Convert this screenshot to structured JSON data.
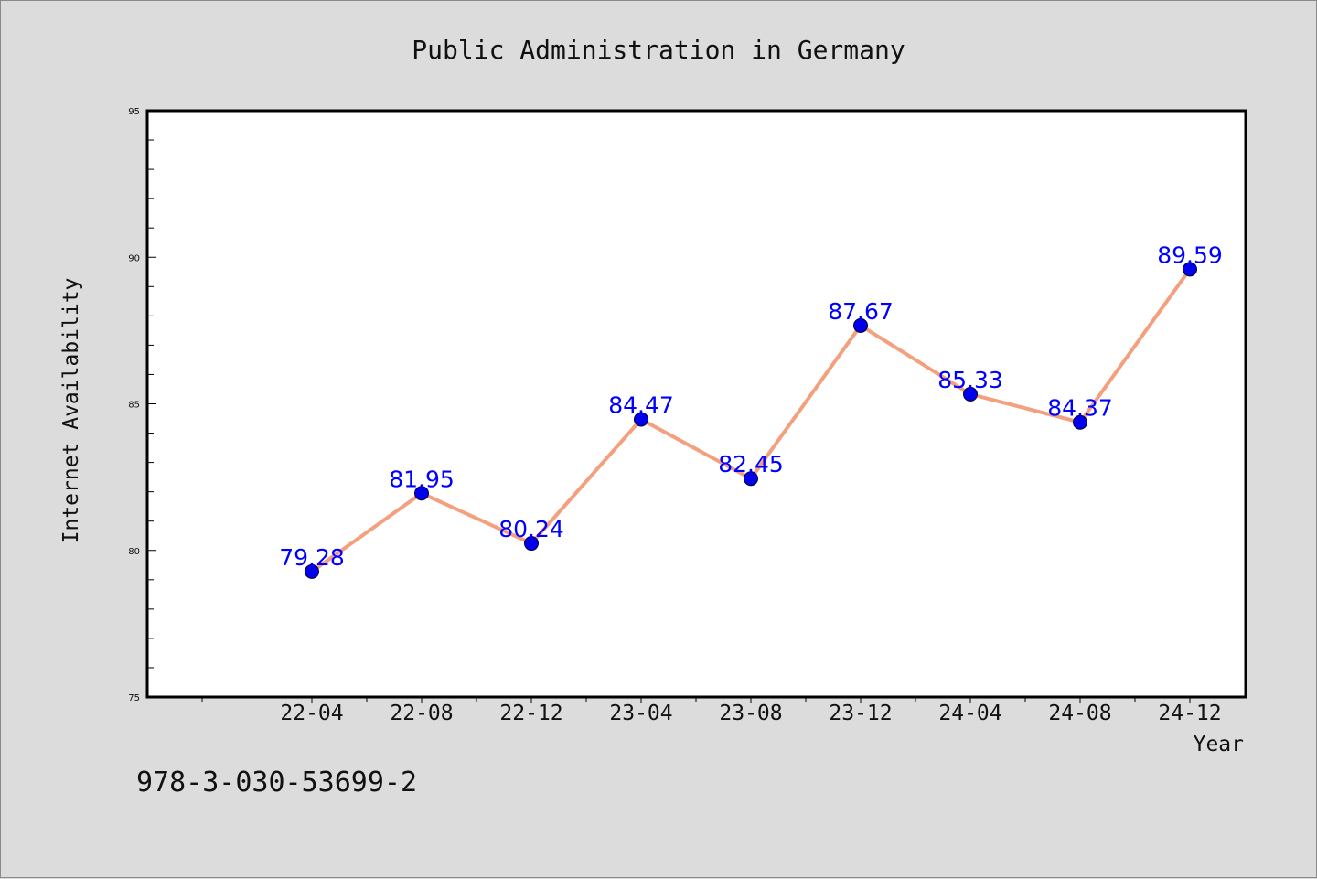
{
  "chart_data": {
    "type": "line",
    "title": "Public Administration in Germany",
    "xlabel": "Year",
    "ylabel": "Internet Availability",
    "categories": [
      "22-04",
      "22-08",
      "22-12",
      "23-04",
      "23-08",
      "23-12",
      "24-04",
      "24-08",
      "24-12"
    ],
    "series": [
      {
        "values": [
          79.28,
          81.95,
          80.24,
          84.47,
          82.45,
          87.67,
          85.33,
          84.37,
          89.59
        ],
        "labels": [
          "79.28",
          "81.95",
          "80.24",
          "84.47",
          "82.45",
          "87.67",
          "85.33",
          "84.37",
          "89.59"
        ],
        "line_color": "#f4a07e",
        "marker_color": "#0000ee"
      }
    ],
    "ylim": [
      75,
      95
    ],
    "yticks": [
      "75",
      "80",
      "85",
      "90",
      "95"
    ],
    "grid": false,
    "legend": "none"
  },
  "footer_text": "978-3-030-53699-2",
  "colors": {
    "background": "#dcdcdc",
    "plot_area": "#ffffff",
    "data_label": "#0000ff"
  }
}
